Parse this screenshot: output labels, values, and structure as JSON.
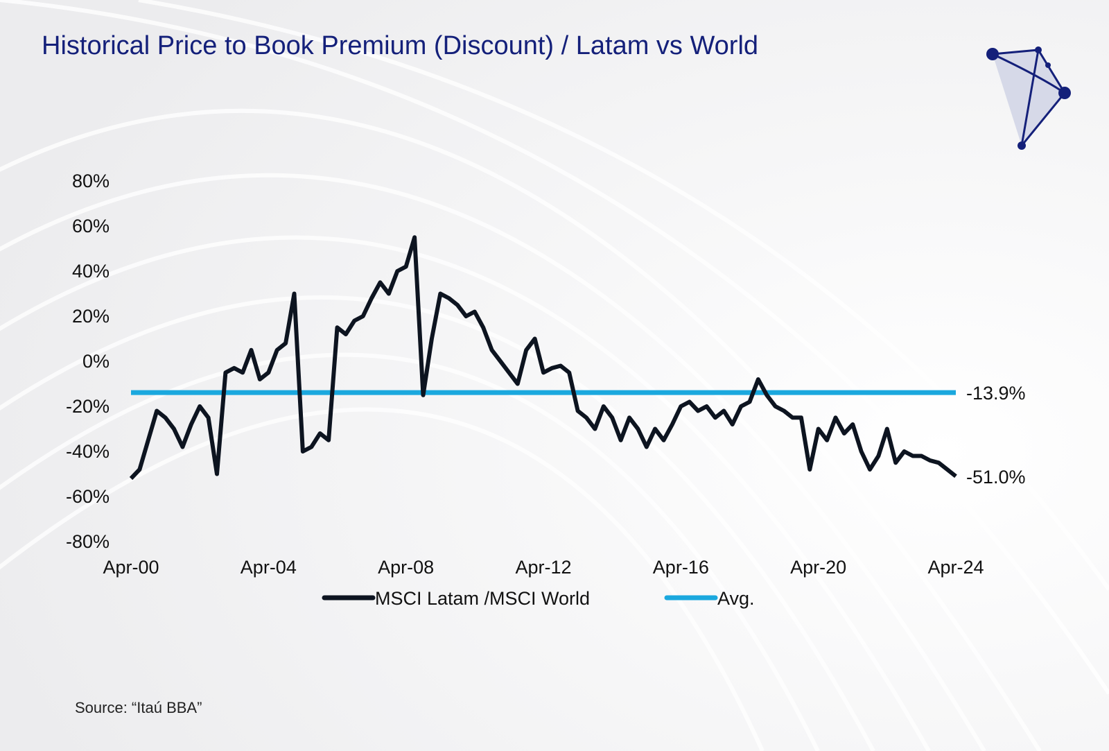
{
  "chart_data": {
    "type": "line",
    "title": "Historical Price to Book Premium (Discount) / Latam vs World",
    "source": "Source: “Itaú BBA”",
    "categories": [
      "Apr-00",
      null,
      null,
      null,
      null,
      null,
      null,
      null,
      null,
      null,
      null,
      null,
      null,
      null,
      null,
      null,
      "Apr-04",
      null,
      null,
      null,
      null,
      null,
      null,
      null,
      null,
      null,
      null,
      null,
      null,
      null,
      null,
      null,
      "Apr-08",
      null,
      null,
      null,
      null,
      null,
      null,
      null,
      null,
      null,
      null,
      null,
      null,
      null,
      null,
      null,
      "Apr-12",
      null,
      null,
      null,
      null,
      null,
      null,
      null,
      null,
      null,
      null,
      null,
      null,
      null,
      null,
      null,
      "Apr-16",
      null,
      null,
      null,
      null,
      null,
      null,
      null,
      null,
      null,
      null,
      null,
      null,
      null,
      null,
      null,
      "Apr-20",
      null,
      null,
      null,
      null,
      null,
      null,
      null,
      null,
      null,
      null,
      null,
      null,
      null,
      null,
      null,
      "Apr-24"
    ],
    "series": [
      {
        "name": "MSCI Latam /MSCI World",
        "color": "#0d1420",
        "values": [
          -52,
          -48,
          -35,
          -22,
          -25,
          -30,
          -38,
          -28,
          -20,
          -25,
          -50,
          -5,
          -3,
          -5,
          5,
          -8,
          -5,
          5,
          8,
          30,
          -40,
          -38,
          -32,
          -35,
          15,
          12,
          18,
          20,
          28,
          35,
          30,
          40,
          42,
          55,
          -15,
          10,
          30,
          28,
          25,
          20,
          22,
          15,
          5,
          0,
          -5,
          -10,
          5,
          10,
          -5,
          -3,
          -2,
          -5,
          -22,
          -25,
          -30,
          -20,
          -25,
          -35,
          -25,
          -30,
          -38,
          -30,
          -35,
          -28,
          -20,
          -18,
          -22,
          -20,
          -25,
          -22,
          -28,
          -20,
          -18,
          -8,
          -15,
          -20,
          -22,
          -25,
          -25,
          -48,
          -30,
          -35,
          -25,
          -32,
          -28,
          -40,
          -48,
          -42,
          -30,
          -45,
          -40,
          -42,
          -42,
          -44,
          -45,
          -48,
          -51
        ],
        "end_label": {
          "value": -51.0,
          "label": "-51.0%"
        }
      }
    ],
    "reference_line": {
      "name": "Avg.",
      "color": "#1ba8de",
      "value": -13.9,
      "label": "-13.9%"
    },
    "ylim": [
      -80,
      80
    ],
    "yticks": [
      {
        "value": 80,
        "label": "80%"
      },
      {
        "value": 60,
        "label": "60%"
      },
      {
        "value": 40,
        "label": "40%"
      },
      {
        "value": 20,
        "label": "20%"
      },
      {
        "value": 0,
        "label": "0%"
      },
      {
        "value": -20,
        "label": "-20%"
      },
      {
        "value": -40,
        "label": "-40%"
      },
      {
        "value": -60,
        "label": "-60%"
      },
      {
        "value": -80,
        "label": "-80%"
      }
    ],
    "grid": false
  }
}
